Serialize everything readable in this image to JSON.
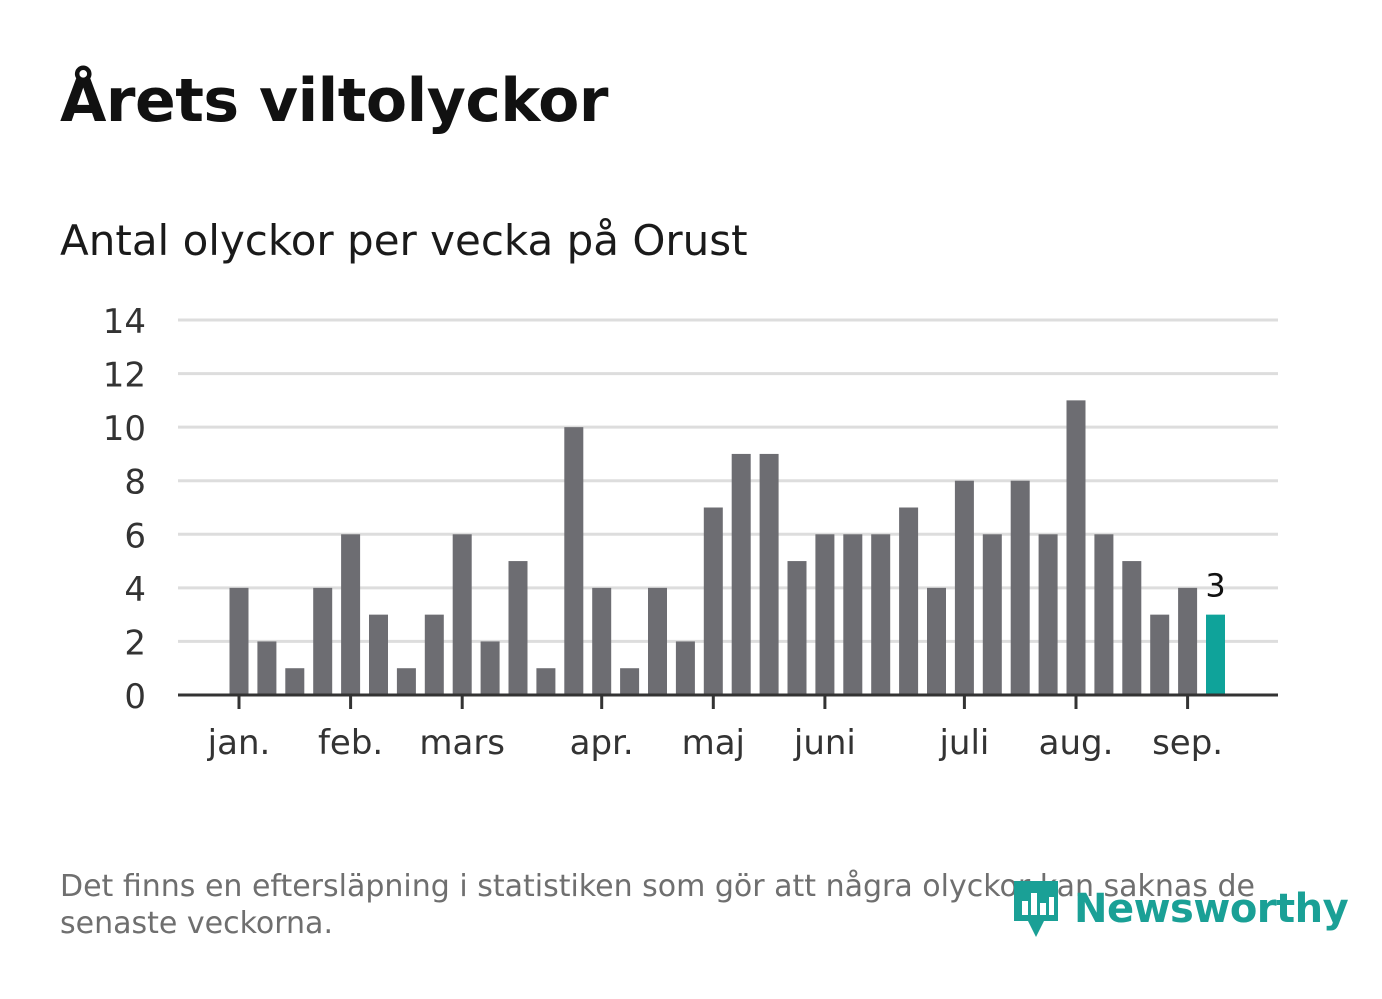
{
  "header": {
    "title": "Årets viltolyckor",
    "subtitle": "Antal olyckor per vecka på Orust"
  },
  "footer": {
    "note": "Det finns en eftersläpning i statistiken som gör att några olyckor kan saknas de senaste veckorna.",
    "brand": "Newsworthy"
  },
  "colors": {
    "bar": "#6d6d72",
    "highlight": "#0fa39a",
    "grid": "#dddddd",
    "axis": "#333333",
    "brand": "#1aa096"
  },
  "chart_data": {
    "type": "bar",
    "title": "Antal olyckor per vecka på Orust",
    "xlabel": "",
    "ylabel": "",
    "x_month_labels": [
      "jan.",
      "feb.",
      "mars",
      "apr.",
      "maj",
      "juni",
      "juli",
      "aug.",
      "sep."
    ],
    "x_month_label_weeks": [
      1,
      5,
      9,
      14,
      18,
      22,
      27,
      31,
      35
    ],
    "weeks": [
      1,
      2,
      3,
      4,
      5,
      6,
      7,
      8,
      9,
      10,
      11,
      12,
      13,
      14,
      15,
      16,
      17,
      18,
      19,
      20,
      21,
      22,
      23,
      24,
      25,
      26,
      27,
      28,
      29,
      30,
      31,
      32,
      33,
      34,
      35,
      36
    ],
    "values": [
      4,
      2,
      1,
      4,
      6,
      3,
      1,
      3,
      6,
      2,
      5,
      1,
      10,
      4,
      1,
      4,
      2,
      7,
      9,
      9,
      5,
      6,
      6,
      6,
      7,
      4,
      8,
      6,
      8,
      6,
      11,
      6,
      5,
      3,
      4,
      3
    ],
    "highlight_last": true,
    "highlight_label": "3",
    "ylim": [
      0,
      14
    ],
    "yticks": [
      0,
      2,
      4,
      6,
      8,
      10,
      12,
      14
    ],
    "grid": true,
    "legend": "none"
  }
}
